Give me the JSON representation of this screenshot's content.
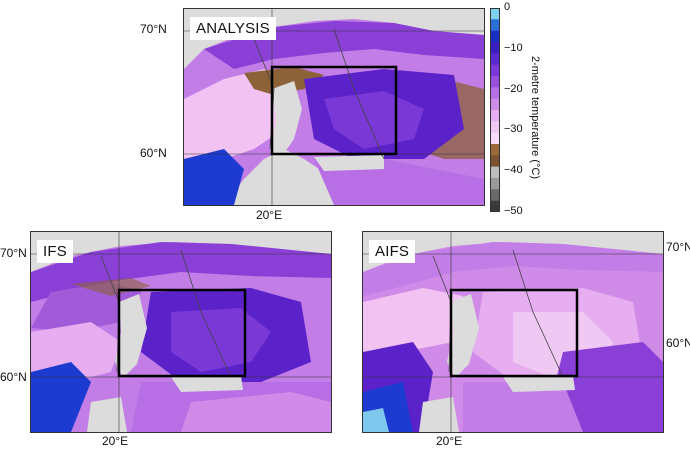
{
  "panels": {
    "analysis": {
      "label": "ANALYSIS",
      "lat_top": "70°N",
      "lat_bottom": "60°N",
      "lon": "20°E"
    },
    "ifs": {
      "label": "IFS",
      "lat_top": "70°N",
      "lat_bottom": "60°N",
      "lon": "20°E"
    },
    "aifs": {
      "label": "AIFS",
      "lat_top": "70°N",
      "lat_bottom": "60°N",
      "lon": "20°E"
    }
  },
  "colorbar": {
    "title": "2-metre temperature (°C)",
    "ticks": [
      "0",
      "−10",
      "−20",
      "−30",
      "−40",
      "−50"
    ],
    "colors": [
      "#7fd3ef",
      "#2a6fd6",
      "#1a2fc4",
      "#3a1fc0",
      "#5b2ad0",
      "#7a38d6",
      "#9a4fde",
      "#b86ee4",
      "#d08ae8",
      "#e6aef0",
      "#f0c8f4",
      "#f8dcf8",
      "#9a6a3a",
      "#7a5230",
      "#bdbdbd",
      "#9a9a9a",
      "#6a6a6a",
      "#3a3a3a"
    ]
  },
  "palette": {
    "sea": "#dcdcdc",
    "land_light": "#f2c3f2",
    "land_mid": "#c27ee6",
    "land_deep": "#8a3fd6",
    "land_violet": "#5a22c8",
    "brown": "#8c6238",
    "blue": "#1d3bd0",
    "light_blue": "#7fc8ee",
    "box": "#000000"
  }
}
